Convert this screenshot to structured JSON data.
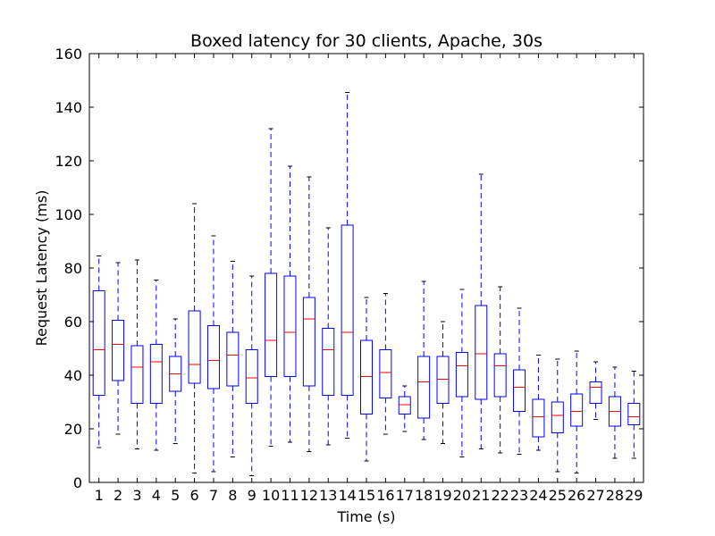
{
  "chart_data": {
    "type": "boxplot",
    "title": "Boxed latency for 30 clients, Apache, 30s",
    "xlabel": "Time (s)",
    "ylabel": "Request Latency (ms)",
    "ylim": [
      0,
      160
    ],
    "yticks": [
      0,
      20,
      40,
      60,
      80,
      100,
      120,
      140,
      160
    ],
    "grid": false,
    "categories": [
      "1",
      "2",
      "3",
      "4",
      "5",
      "6",
      "7",
      "8",
      "9",
      "10",
      "11",
      "12",
      "13",
      "14",
      "15",
      "16",
      "17",
      "18",
      "19",
      "20",
      "21",
      "22",
      "23",
      "24",
      "25",
      "26",
      "27",
      "28",
      "29"
    ],
    "boxes": [
      {
        "x": "1",
        "whisker_low": 13,
        "q1": 32.5,
        "median": 49.5,
        "q3": 71.5,
        "whisker_high": 84.5
      },
      {
        "x": "2",
        "whisker_low": 18,
        "q1": 38,
        "median": 51.5,
        "q3": 60.5,
        "whisker_high": 82
      },
      {
        "x": "3",
        "whisker_low": 12.5,
        "q1": 29.5,
        "median": 43,
        "q3": 51,
        "whisker_high": 83
      },
      {
        "x": "4",
        "whisker_low": 12,
        "q1": 29.5,
        "median": 45,
        "q3": 51.5,
        "whisker_high": 75.5
      },
      {
        "x": "5",
        "whisker_low": 14.5,
        "q1": 34,
        "median": 40.5,
        "q3": 47,
        "whisker_high": 61
      },
      {
        "x": "6",
        "whisker_low": 3.5,
        "q1": 37,
        "median": 44,
        "q3": 64,
        "whisker_high": 104
      },
      {
        "x": "7",
        "whisker_low": 4,
        "q1": 35,
        "median": 45.5,
        "q3": 58.5,
        "whisker_high": 92
      },
      {
        "x": "8",
        "whisker_low": 9.5,
        "q1": 36,
        "median": 47.5,
        "q3": 56,
        "whisker_high": 82.5
      },
      {
        "x": "9",
        "whisker_low": 2.5,
        "q1": 29.5,
        "median": 39,
        "q3": 49.5,
        "whisker_high": 77
      },
      {
        "x": "10",
        "whisker_low": 13.5,
        "q1": 39.5,
        "median": 53,
        "q3": 78,
        "whisker_high": 132
      },
      {
        "x": "11",
        "whisker_low": 15,
        "q1": 39.5,
        "median": 56,
        "q3": 77,
        "whisker_high": 118
      },
      {
        "x": "12",
        "whisker_low": 11.5,
        "q1": 36,
        "median": 61,
        "q3": 69,
        "whisker_high": 114
      },
      {
        "x": "13",
        "whisker_low": 14,
        "q1": 32.5,
        "median": 49.5,
        "q3": 57.5,
        "whisker_high": 95
      },
      {
        "x": "14",
        "whisker_low": 16.5,
        "q1": 32.5,
        "median": 56,
        "q3": 96,
        "whisker_high": 145.5
      },
      {
        "x": "15",
        "whisker_low": 8,
        "q1": 25.5,
        "median": 39.5,
        "q3": 53,
        "whisker_high": 69
      },
      {
        "x": "16",
        "whisker_low": 18,
        "q1": 31.5,
        "median": 41,
        "q3": 49.5,
        "whisker_high": 70.5
      },
      {
        "x": "17",
        "whisker_low": 19,
        "q1": 25.5,
        "median": 29,
        "q3": 32,
        "whisker_high": 36
      },
      {
        "x": "18",
        "whisker_low": 16,
        "q1": 24,
        "median": 37.5,
        "q3": 47,
        "whisker_high": 75
      },
      {
        "x": "19",
        "whisker_low": 14.5,
        "q1": 29.5,
        "median": 38.5,
        "q3": 47,
        "whisker_high": 60
      },
      {
        "x": "20",
        "whisker_low": 9.5,
        "q1": 32,
        "median": 43.5,
        "q3": 48.5,
        "whisker_high": 72
      },
      {
        "x": "21",
        "whisker_low": 12.5,
        "q1": 31,
        "median": 48,
        "q3": 66,
        "whisker_high": 115
      },
      {
        "x": "22",
        "whisker_low": 11,
        "q1": 32,
        "median": 43.5,
        "q3": 48,
        "whisker_high": 73
      },
      {
        "x": "23",
        "whisker_low": 10.5,
        "q1": 26.5,
        "median": 35.5,
        "q3": 42,
        "whisker_high": 65
      },
      {
        "x": "24",
        "whisker_low": 12,
        "q1": 17,
        "median": 24.5,
        "q3": 31,
        "whisker_high": 47.5
      },
      {
        "x": "25",
        "whisker_low": 4,
        "q1": 18.5,
        "median": 25,
        "q3": 30,
        "whisker_high": 46
      },
      {
        "x": "26",
        "whisker_low": 3.5,
        "q1": 21,
        "median": 26.5,
        "q3": 33,
        "whisker_high": 49
      },
      {
        "x": "27",
        "whisker_low": 23.5,
        "q1": 29.5,
        "median": 35.5,
        "q3": 37.5,
        "whisker_high": 45
      },
      {
        "x": "28",
        "whisker_low": 9,
        "q1": 21,
        "median": 26.5,
        "q3": 32,
        "whisker_high": 43
      },
      {
        "x": "29",
        "whisker_low": 9,
        "q1": 21.5,
        "median": 24.5,
        "q3": 29.5,
        "whisker_high": 41.5
      }
    ],
    "colors": {
      "box": "#0000ff",
      "median": "#ff0000",
      "whisker": "#0000ff",
      "cap": "#000000",
      "axes": "#000000",
      "background": "#ffffff"
    }
  }
}
